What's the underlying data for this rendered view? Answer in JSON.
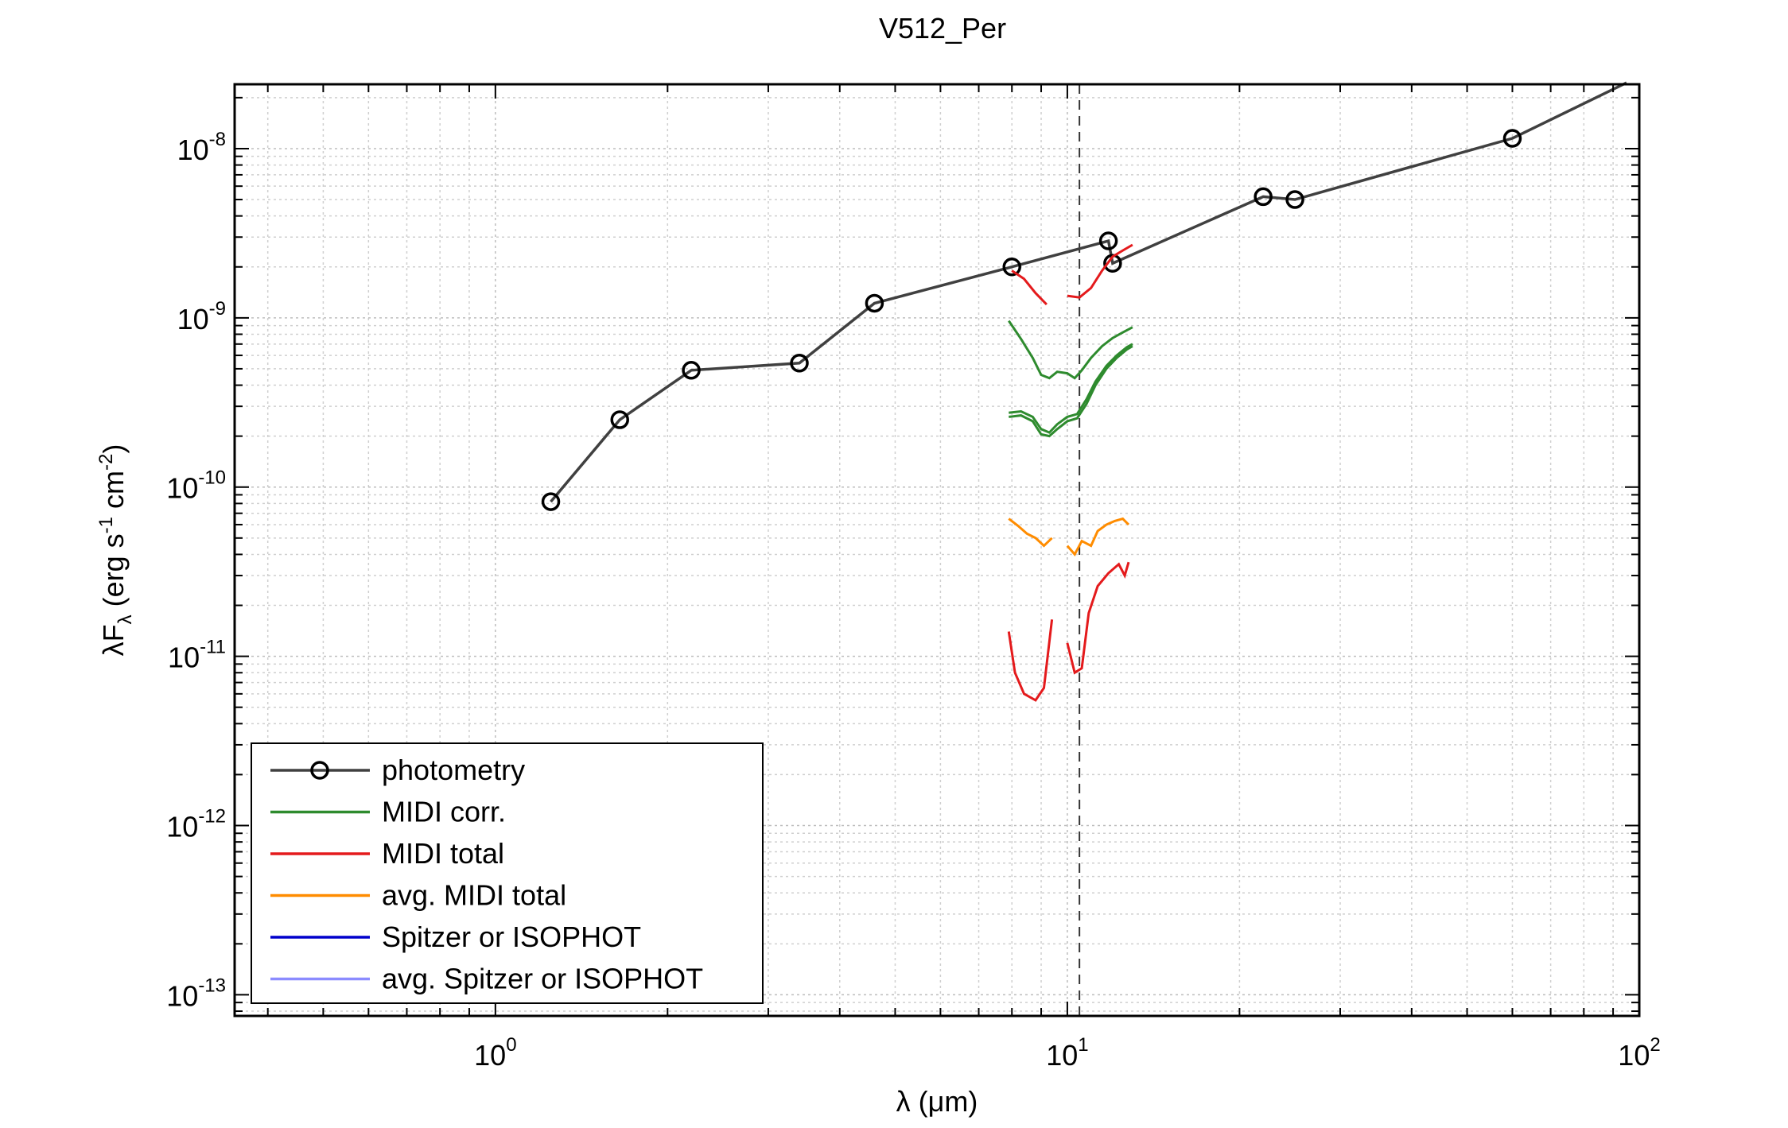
{
  "chart_data": {
    "type": "line",
    "title": "V512_Per",
    "xlabel": "λ (μm)",
    "ylabel_parts": {
      "a": "λF",
      "sub": "λ",
      "b": " (erg s",
      "sup1": "-1",
      "c": " cm",
      "sup2": "-2",
      "d": ")"
    },
    "x_scale": "log",
    "y_scale": "log",
    "xlim": [
      0.35,
      100
    ],
    "ylim": [
      7.5e-14,
      2.4e-08
    ],
    "grid": true,
    "x_ticks": [
      {
        "value": 1,
        "base": "10",
        "exp": "0"
      },
      {
        "value": 10,
        "base": "10",
        "exp": "1"
      },
      {
        "value": 100,
        "base": "10",
        "exp": "2"
      }
    ],
    "y_ticks": [
      {
        "value": 1e-13,
        "base": "10",
        "exp": "-13"
      },
      {
        "value": 1e-12,
        "base": "10",
        "exp": "-12"
      },
      {
        "value": 1e-11,
        "base": "10",
        "exp": "-11"
      },
      {
        "value": 1e-10,
        "base": "10",
        "exp": "-10"
      },
      {
        "value": 1e-09,
        "base": "10",
        "exp": "-9"
      },
      {
        "value": 1e-08,
        "base": "10",
        "exp": "-8"
      }
    ],
    "reference_line": {
      "x": 10.5,
      "style": "dashed"
    },
    "legend_position": "bottom-left",
    "colors": {
      "photometry": "#404040",
      "midi_corr": "#2e8b2e",
      "midi_total": "#e41a1c",
      "avg_midi_total": "#ff8c00",
      "spitzer": "#0000cc",
      "avg_spitzer": "#8c8cff"
    },
    "series": [
      {
        "name": "photometry",
        "key": "photometry",
        "color": "#404040",
        "markers": true,
        "points": [
          [
            1.25,
            8.2e-11
          ],
          [
            1.65,
            2.5e-10
          ],
          [
            2.2,
            4.9e-10
          ],
          [
            3.4,
            5.4e-10
          ],
          [
            4.6,
            1.22e-09
          ],
          [
            8.0,
            2e-09
          ],
          [
            11.8,
            2.85e-09
          ],
          [
            12.0,
            2.1e-09
          ],
          [
            22.0,
            5.2e-09
          ],
          [
            25.0,
            5e-09
          ],
          [
            60.0,
            1.15e-08
          ],
          [
            95.0,
            2.45e-08
          ]
        ],
        "no_marker_index": [
          11
        ]
      },
      {
        "name": "MIDI corr.",
        "key": "midi_corr",
        "color": "#2e8b2e",
        "segments": [
          [
            [
              7.9,
              9.6e-10
            ],
            [
              8.3,
              7.5e-10
            ],
            [
              8.7,
              5.8e-10
            ],
            [
              9.0,
              4.6e-10
            ],
            [
              9.3,
              4.4e-10
            ],
            [
              9.6,
              4.8e-10
            ],
            [
              10.0,
              4.7e-10
            ],
            [
              10.3,
              4.4e-10
            ],
            [
              10.6,
              4.9e-10
            ],
            [
              11.0,
              5.8e-10
            ],
            [
              11.5,
              6.8e-10
            ],
            [
              12.0,
              7.6e-10
            ],
            [
              12.5,
              8.2e-10
            ],
            [
              13.0,
              8.8e-10
            ]
          ],
          [
            [
              7.9,
              2.75e-10
            ],
            [
              8.3,
              2.8e-10
            ],
            [
              8.7,
              2.6e-10
            ],
            [
              9.0,
              2.2e-10
            ],
            [
              9.3,
              2.1e-10
            ],
            [
              9.6,
              2.35e-10
            ],
            [
              10.0,
              2.6e-10
            ],
            [
              10.4,
              2.7e-10
            ],
            [
              10.8,
              3.3e-10
            ],
            [
              11.2,
              4.2e-10
            ],
            [
              11.7,
              5.2e-10
            ],
            [
              12.2,
              6e-10
            ],
            [
              12.7,
              6.7e-10
            ],
            [
              13.0,
              7e-10
            ]
          ],
          [
            [
              7.9,
              2.6e-10
            ],
            [
              8.3,
              2.65e-10
            ],
            [
              8.7,
              2.45e-10
            ],
            [
              9.0,
              2.05e-10
            ],
            [
              9.3,
              2e-10
            ],
            [
              9.6,
              2.2e-10
            ],
            [
              10.0,
              2.45e-10
            ],
            [
              10.4,
              2.55e-10
            ],
            [
              10.8,
              3.1e-10
            ],
            [
              11.2,
              4e-10
            ],
            [
              11.7,
              5e-10
            ],
            [
              12.2,
              5.8e-10
            ],
            [
              12.7,
              6.5e-10
            ],
            [
              13.0,
              6.8e-10
            ]
          ]
        ]
      },
      {
        "name": "MIDI total",
        "key": "midi_total",
        "color": "#e41a1c",
        "segments": [
          [
            [
              8.0,
              1.9e-09
            ],
            [
              8.4,
              1.7e-09
            ],
            [
              8.8,
              1.4e-09
            ],
            [
              9.2,
              1.2e-09
            ]
          ],
          [
            [
              10.0,
              1.35e-09
            ],
            [
              10.5,
              1.32e-09
            ],
            [
              11.0,
              1.5e-09
            ],
            [
              11.5,
              1.9e-09
            ],
            [
              12.0,
              2.3e-09
            ],
            [
              12.5,
              2.5e-09
            ],
            [
              13.0,
              2.7e-09
            ]
          ],
          [
            [
              7.9,
              1.4e-11
            ],
            [
              8.1,
              8e-12
            ],
            [
              8.4,
              6e-12
            ],
            [
              8.8,
              5.5e-12
            ],
            [
              9.1,
              6.5e-12
            ],
            [
              9.4,
              1.65e-11
            ]
          ],
          [
            [
              10.0,
              1.2e-11
            ],
            [
              10.3,
              8e-12
            ],
            [
              10.6,
              8.5e-12
            ],
            [
              10.9,
              1.8e-11
            ],
            [
              11.3,
              2.6e-11
            ],
            [
              11.8,
              3.1e-11
            ],
            [
              12.3,
              3.5e-11
            ],
            [
              12.6,
              3e-11
            ],
            [
              12.8,
              3.6e-11
            ]
          ]
        ]
      },
      {
        "name": "avg. MIDI total",
        "key": "avg_midi_total",
        "color": "#ff8c00",
        "segments": [
          [
            [
              7.9,
              6.5e-11
            ],
            [
              8.2,
              5.9e-11
            ],
            [
              8.5,
              5.3e-11
            ],
            [
              8.8,
              5e-11
            ],
            [
              9.1,
              4.5e-11
            ],
            [
              9.4,
              5e-11
            ]
          ],
          [
            [
              10.0,
              4.5e-11
            ],
            [
              10.3,
              4e-11
            ],
            [
              10.6,
              4.8e-11
            ],
            [
              11.0,
              4.5e-11
            ],
            [
              11.3,
              5.5e-11
            ],
            [
              11.7,
              6e-11
            ],
            [
              12.1,
              6.3e-11
            ],
            [
              12.5,
              6.5e-11
            ],
            [
              12.8,
              6e-11
            ]
          ]
        ]
      },
      {
        "name": "Spitzer or ISOPHOT",
        "key": "spitzer",
        "color": "#0000cc",
        "segments": []
      },
      {
        "name": "avg. Spitzer or ISOPHOT",
        "key": "avg_spitzer",
        "color": "#8c8cff",
        "segments": []
      }
    ]
  }
}
